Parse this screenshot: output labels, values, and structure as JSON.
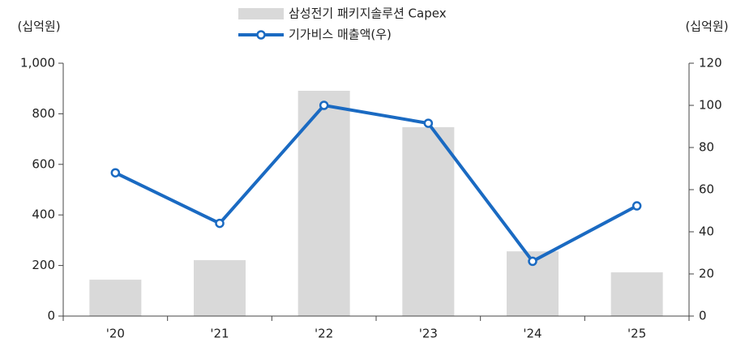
{
  "chart_data": {
    "type": "bar_line",
    "categories": [
      "'20",
      "'21",
      "'22",
      "'23",
      "'24",
      "'25"
    ],
    "y_label": "(십억원)",
    "y2_label": "(십억원)",
    "series": [
      {
        "name": "삼성전기 패키지솔루션 Capex",
        "type": "bar",
        "color": "#d9d9d9",
        "values": [
          144,
          221,
          891,
          747,
          256,
          173
        ]
      },
      {
        "name": "기가비스 매출액(우)",
        "type": "line",
        "axis": "y2",
        "color": "#1a6ac2",
        "values": [
          68,
          44,
          100,
          91.5,
          26,
          52.3
        ]
      }
    ],
    "ylim": [
      0,
      1000
    ],
    "yticks": [
      0,
      200,
      400,
      600,
      800,
      {
        "value": 1000,
        "label": "1,000"
      }
    ],
    "y2lim": [
      0,
      120
    ],
    "y2ticks": [
      0,
      20,
      40,
      60,
      80,
      100,
      120
    ],
    "legend": "top"
  }
}
